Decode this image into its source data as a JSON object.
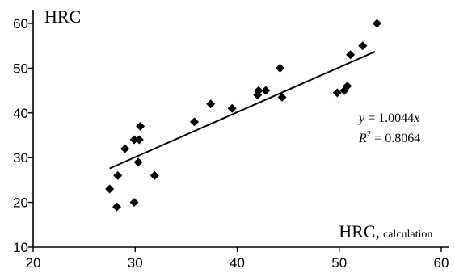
{
  "chart_data": {
    "type": "scatter",
    "ylabel": "HRC",
    "xlabel_main": "HRC,",
    "xlabel_sub": "calculation",
    "xlim": [
      20,
      60
    ],
    "ylim": [
      10,
      60
    ],
    "xticks": [
      20,
      30,
      40,
      50,
      60
    ],
    "yticks": [
      10,
      20,
      30,
      40,
      50,
      60
    ],
    "points": [
      {
        "x": 27.5,
        "y": 23
      },
      {
        "x": 28.2,
        "y": 19
      },
      {
        "x": 28.3,
        "y": 26
      },
      {
        "x": 29.0,
        "y": 32
      },
      {
        "x": 29.9,
        "y": 20
      },
      {
        "x": 29.9,
        "y": 34
      },
      {
        "x": 30.3,
        "y": 29
      },
      {
        "x": 30.4,
        "y": 34
      },
      {
        "x": 30.5,
        "y": 37
      },
      {
        "x": 31.9,
        "y": 26
      },
      {
        "x": 35.8,
        "y": 38
      },
      {
        "x": 37.4,
        "y": 42
      },
      {
        "x": 39.5,
        "y": 41
      },
      {
        "x": 42.0,
        "y": 44
      },
      {
        "x": 42.1,
        "y": 45
      },
      {
        "x": 42.8,
        "y": 45
      },
      {
        "x": 44.2,
        "y": 50
      },
      {
        "x": 44.4,
        "y": 43.5
      },
      {
        "x": 49.8,
        "y": 44.5
      },
      {
        "x": 50.5,
        "y": 45
      },
      {
        "x": 50.8,
        "y": 46
      },
      {
        "x": 51.1,
        "y": 53
      },
      {
        "x": 52.3,
        "y": 55
      },
      {
        "x": 53.7,
        "y": 60
      }
    ],
    "trendline": {
      "x": [
        27.5,
        53.5
      ],
      "y": [
        27.6,
        53.7
      ]
    },
    "equation_lhs": "y",
    "equation_rhs": " = 1.0044",
    "equation_var": "x",
    "r2_label": "R",
    "r2_sup": "2",
    "r2_rhs": " = 0.8064"
  }
}
